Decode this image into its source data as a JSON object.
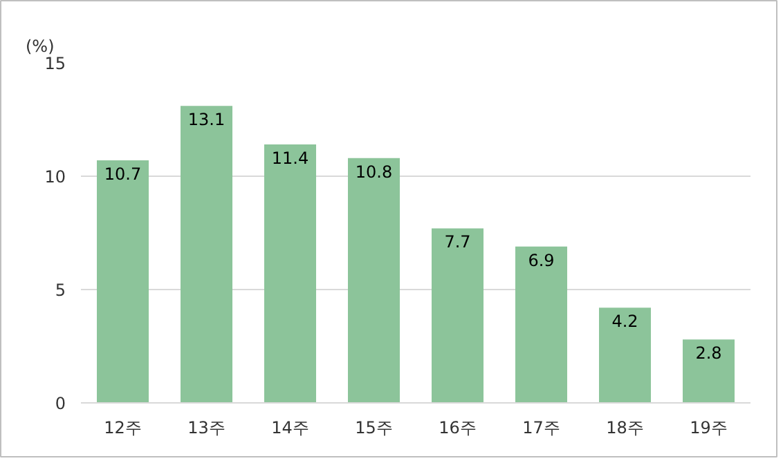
{
  "chart_data": {
    "type": "bar",
    "ylabel": "(%)",
    "categories": [
      "12주",
      "13주",
      "14주",
      "15주",
      "16주",
      "17주",
      "18주",
      "19주"
    ],
    "values": [
      10.7,
      13.1,
      11.4,
      10.8,
      7.7,
      6.9,
      4.2,
      2.8
    ],
    "color": "#8cc49a",
    "ylim": [
      0,
      15
    ],
    "yticks": [
      0,
      5,
      10,
      15
    ],
    "grid": "y",
    "data_labels": true
  }
}
